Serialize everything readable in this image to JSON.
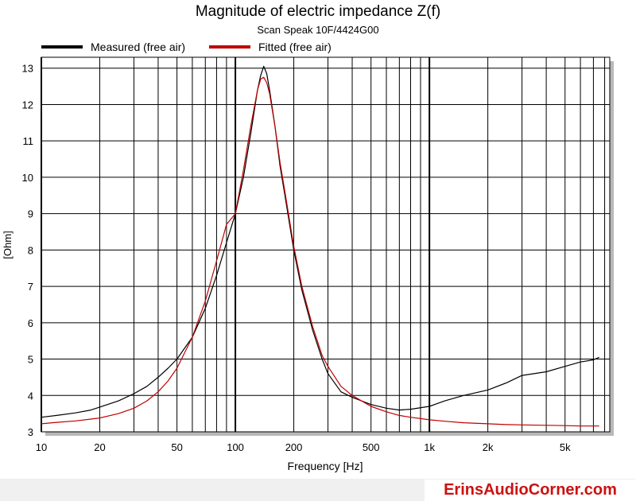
{
  "chart_data": {
    "type": "line",
    "title": "Magnitude of electric impedance Z(f)",
    "subtitle": "Scan Speak 10F/4424G00",
    "xlabel": "Frequency [Hz]",
    "ylabel": "[Ohm]",
    "xscale": "log",
    "xlim": [
      10,
      8500
    ],
    "ylim": [
      3,
      13.3
    ],
    "grid": true,
    "legend_position": "top-left",
    "x_ticks": [
      {
        "value": 10,
        "label": "10"
      },
      {
        "value": 20,
        "label": "20"
      },
      {
        "value": 50,
        "label": "50"
      },
      {
        "value": 100,
        "label": "100"
      },
      {
        "value": 200,
        "label": "200"
      },
      {
        "value": 500,
        "label": "500"
      },
      {
        "value": 1000,
        "label": "1k"
      },
      {
        "value": 2000,
        "label": "2k"
      },
      {
        "value": 5000,
        "label": "5k"
      }
    ],
    "y_ticks": [
      3,
      4,
      5,
      6,
      7,
      8,
      9,
      10,
      11,
      12,
      13
    ],
    "series": [
      {
        "name": "Measured (free air)",
        "color": "#000000",
        "x": [
          10,
          12,
          15,
          18,
          20,
          25,
          30,
          35,
          40,
          45,
          50,
          60,
          70,
          80,
          90,
          100,
          110,
          120,
          130,
          135,
          140,
          145,
          150,
          160,
          170,
          180,
          200,
          220,
          250,
          280,
          300,
          350,
          400,
          500,
          600,
          700,
          800,
          1000,
          1200,
          1500,
          2000,
          2500,
          3000,
          4000,
          5000,
          6000,
          7000,
          7500
        ],
        "y": [
          3.4,
          3.45,
          3.52,
          3.6,
          3.68,
          3.85,
          4.05,
          4.25,
          4.5,
          4.75,
          5.0,
          5.6,
          6.4,
          7.3,
          8.2,
          9.0,
          10.0,
          11.2,
          12.4,
          12.8,
          13.05,
          12.85,
          12.4,
          11.4,
          10.3,
          9.5,
          8.0,
          6.9,
          5.8,
          5.0,
          4.6,
          4.1,
          3.95,
          3.75,
          3.65,
          3.6,
          3.62,
          3.7,
          3.85,
          4.0,
          4.15,
          4.35,
          4.55,
          4.65,
          4.8,
          4.92,
          4.98,
          5.05
        ]
      },
      {
        "name": "Fitted (free air)",
        "color": "#c00000",
        "x": [
          10,
          12,
          15,
          18,
          20,
          25,
          30,
          35,
          40,
          45,
          50,
          60,
          70,
          80,
          90,
          100,
          110,
          120,
          130,
          135,
          140,
          145,
          150,
          160,
          170,
          180,
          200,
          220,
          250,
          280,
          300,
          350,
          400,
          500,
          600,
          700,
          800,
          1000,
          1200,
          1500,
          2000,
          2500,
          3000,
          4000,
          5000,
          6000,
          7000,
          7500
        ],
        "y": [
          3.22,
          3.26,
          3.3,
          3.35,
          3.38,
          3.5,
          3.65,
          3.85,
          4.1,
          4.4,
          4.75,
          5.6,
          6.6,
          7.7,
          8.7,
          9.0,
          10.2,
          11.4,
          12.4,
          12.7,
          12.75,
          12.6,
          12.3,
          11.4,
          10.4,
          9.6,
          8.1,
          7.0,
          5.9,
          5.1,
          4.8,
          4.25,
          4.0,
          3.7,
          3.55,
          3.45,
          3.4,
          3.33,
          3.29,
          3.25,
          3.22,
          3.2,
          3.19,
          3.18,
          3.17,
          3.16,
          3.16,
          3.16
        ]
      }
    ]
  },
  "watermark": "ErinsAudioCorner.com"
}
